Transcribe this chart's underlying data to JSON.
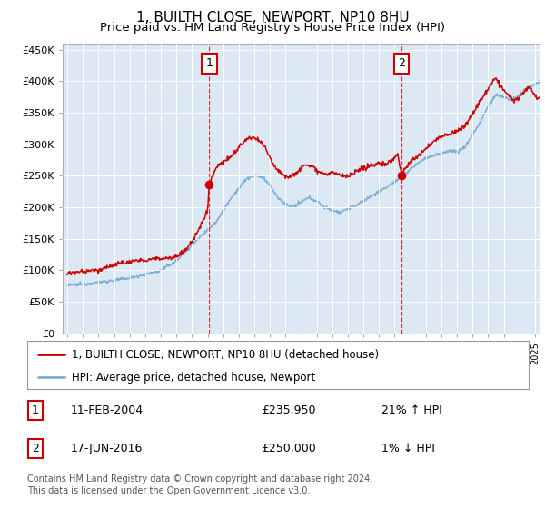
{
  "title": "1, BUILTH CLOSE, NEWPORT, NP10 8HU",
  "subtitle": "Price paid vs. HM Land Registry's House Price Index (HPI)",
  "ylabel_ticks": [
    "£0",
    "£50K",
    "£100K",
    "£150K",
    "£200K",
    "£250K",
    "£300K",
    "£350K",
    "£400K",
    "£450K"
  ],
  "ytick_values": [
    0,
    50000,
    100000,
    150000,
    200000,
    250000,
    300000,
    350000,
    400000,
    450000
  ],
  "ylim": [
    0,
    460000
  ],
  "xlim_start": 1994.7,
  "xlim_end": 2025.3,
  "plot_bg": "#dde8f5",
  "red_color": "#cc0000",
  "blue_color": "#7bafd4",
  "grid_color": "#ffffff",
  "legend_label_red": "1, BUILTH CLOSE, NEWPORT, NP10 8HU (detached house)",
  "legend_label_blue": "HPI: Average price, detached house, Newport",
  "sale1_x": 2004.1,
  "sale1_y": 235950,
  "sale1_label": "1",
  "sale2_x": 2016.45,
  "sale2_y": 250000,
  "sale2_label": "2",
  "footer": "Contains HM Land Registry data © Crown copyright and database right 2024.\nThis data is licensed under the Open Government Licence v3.0.",
  "title_fontsize": 11,
  "subtitle_fontsize": 9.5,
  "tick_fontsize": 8,
  "legend_fontsize": 8.5,
  "table_fontsize": 9,
  "footer_fontsize": 7
}
